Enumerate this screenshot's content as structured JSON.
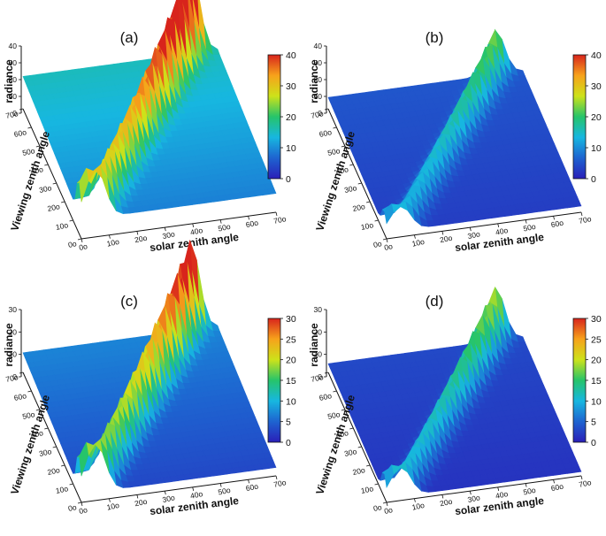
{
  "chart_data": [
    {
      "type": "surface",
      "panel_label": "(a)",
      "zlabel": "radiance",
      "xlabel": "solar zenith angle",
      "ylabel": "Viewing zenith angle",
      "z_ticks": [
        "0",
        "10",
        "20",
        "30",
        "40"
      ],
      "x_ticks": [
        "0o",
        "10o",
        "20o",
        "30o",
        "40o",
        "50o",
        "60o",
        "70o"
      ],
      "y_ticks": [
        "0o",
        "10o",
        "20o",
        "30o",
        "40o",
        "50o",
        "60o",
        "70o"
      ],
      "colorbar_ticks": [
        "0",
        "10",
        "20",
        "30",
        "40"
      ],
      "colorbar_range": [
        0,
        40
      ],
      "base_level": 12,
      "diag_peak": 40,
      "far_edge_level": 10
    },
    {
      "type": "surface",
      "panel_label": "(b)",
      "zlabel": "radiance",
      "xlabel": "solar zenith angle",
      "ylabel": "Viewing zenith angle",
      "z_ticks": [
        "0",
        "10",
        "20",
        "30",
        "40"
      ],
      "x_ticks": [
        "0o",
        "10o",
        "20o",
        "30o",
        "40o",
        "50o",
        "60o",
        "70o"
      ],
      "y_ticks": [
        "0o",
        "10o",
        "20o",
        "30o",
        "40o",
        "50o",
        "60o",
        "70o"
      ],
      "colorbar_ticks": [
        "0",
        "10",
        "20",
        "30",
        "40"
      ],
      "colorbar_range": [
        0,
        40
      ],
      "base_level": 4,
      "diag_peak": 20,
      "far_edge_level": 4
    },
    {
      "type": "surface",
      "panel_label": "(c)",
      "zlabel": "radiance",
      "xlabel": "solar zenith angle",
      "ylabel": "Viewing zenith angle",
      "z_ticks": [
        "0",
        "10",
        "20",
        "30"
      ],
      "x_ticks": [
        "0o",
        "10o",
        "20o",
        "30o",
        "40o",
        "50o",
        "60o",
        "70o"
      ],
      "y_ticks": [
        "0o",
        "10o",
        "20o",
        "30o",
        "40o",
        "50o",
        "60o",
        "70o"
      ],
      "colorbar_ticks": [
        "0",
        "5",
        "10",
        "15",
        "20",
        "25",
        "30"
      ],
      "colorbar_range": [
        0,
        30
      ],
      "base_level": 4,
      "diag_peak": 30,
      "far_edge_level": 8
    },
    {
      "type": "surface",
      "panel_label": "(d)",
      "zlabel": "radiance",
      "xlabel": "solar zenith angle",
      "ylabel": "Viewing zenith angle",
      "z_ticks": [
        "0",
        "10",
        "20",
        "30"
      ],
      "x_ticks": [
        "0o",
        "10o",
        "20o",
        "30o",
        "40o",
        "50o",
        "60o",
        "70o"
      ],
      "y_ticks": [
        "0o",
        "10o",
        "20o",
        "30o",
        "40o",
        "50o",
        "60o",
        "70o"
      ],
      "colorbar_ticks": [
        "0",
        "5",
        "10",
        "15",
        "20",
        "25",
        "30"
      ],
      "colorbar_range": [
        0,
        30
      ],
      "base_level": 2,
      "diag_peak": 18,
      "far_edge_level": 3
    }
  ],
  "colors": {
    "colormap": [
      "#2a1fb8",
      "#1e63d0",
      "#17b7e0",
      "#26c46a",
      "#cde21a",
      "#f7a21b",
      "#d8241c"
    ]
  }
}
